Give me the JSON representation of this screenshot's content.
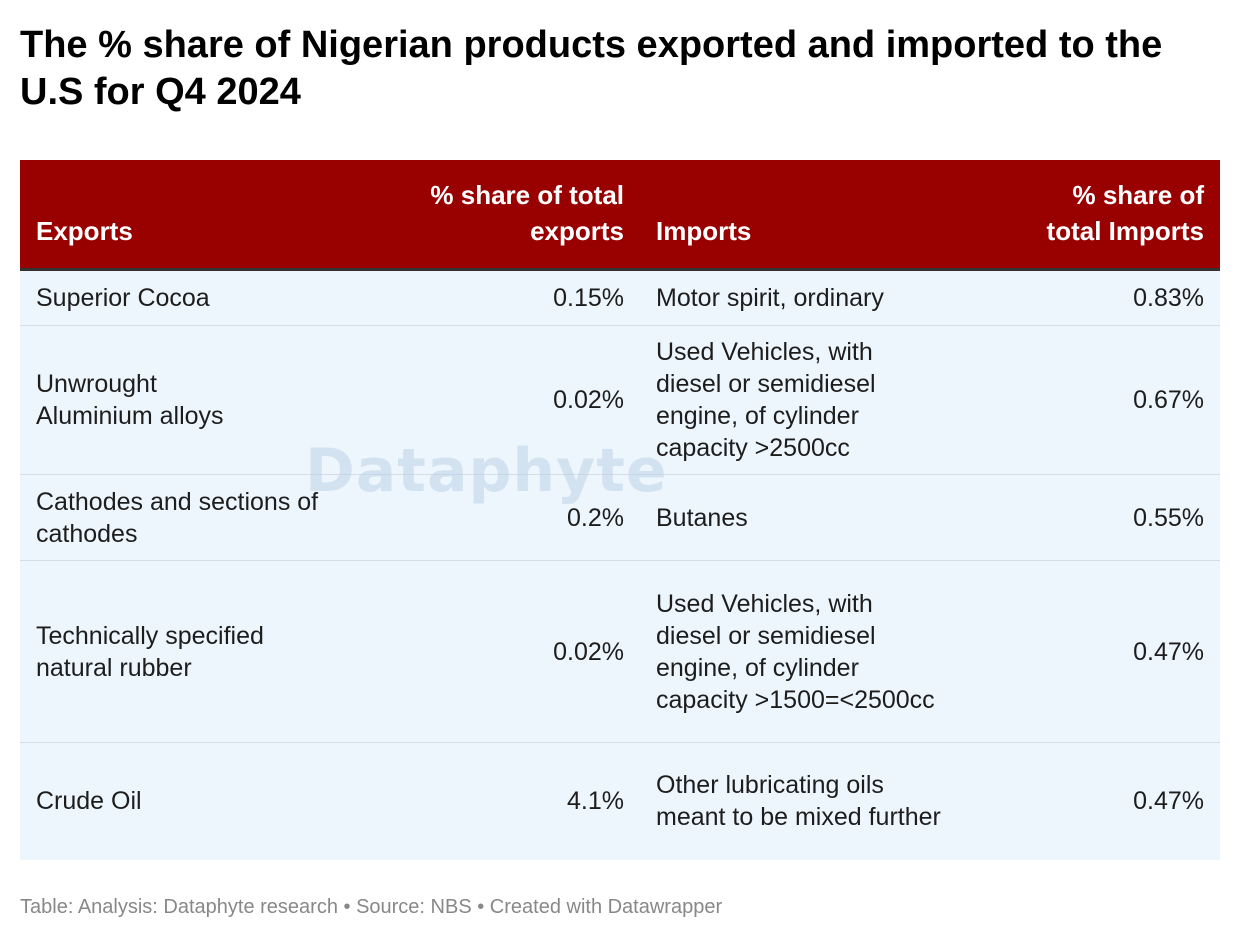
{
  "title": "The % share of Nigerian products exported and imported to the U.S for Q4 2024",
  "watermark": "Dataphyte",
  "footer": "Table: Analysis: Dataphyte research • Source: NBS • Created with Datawrapper",
  "colors": {
    "header_bg": "#990000",
    "row_bg": "#edf5fd",
    "header_text": "#ffffff"
  },
  "chart_data": {
    "type": "table",
    "title": "The % share of Nigerian products exported and imported to the U.S for Q4 2024",
    "columns": [
      "Exports",
      "% share of total exports",
      "Imports",
      "% share of total Imports"
    ],
    "rows": [
      [
        "Superior Cocoa",
        "0.15%",
        "Motor spirit, ordinary",
        "0.83%"
      ],
      [
        "Unwrought Aluminium alloys",
        "0.02%",
        "Used Vehicles, with diesel or semidiesel engine, of cylinder capacity >2500cc",
        "0.67%"
      ],
      [
        "Cathodes and sections of cathodes",
        "0.2%",
        "Butanes",
        "0.55%"
      ],
      [
        "Technically specified natural rubber",
        "0.02%",
        "Used Vehicles, with diesel or semidiesel engine, of cylinder capacity >1500=<2500cc",
        "0.47%"
      ],
      [
        "Crude Oil",
        "4.1%",
        "Other lubricating oils meant to be mixed further",
        "0.47%"
      ]
    ]
  }
}
